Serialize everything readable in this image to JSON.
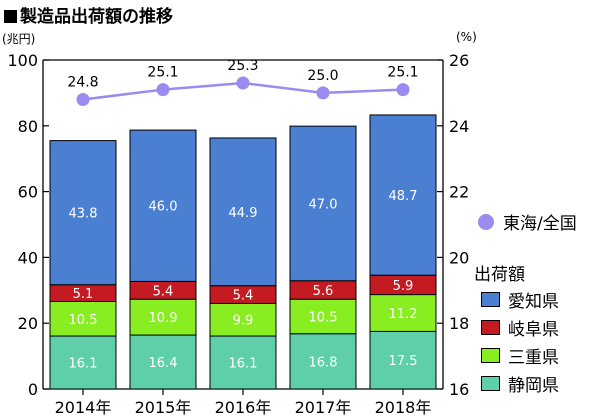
{
  "title": "製造品出荷額の推移",
  "left_unit": "(兆円)",
  "right_unit": "(%)",
  "chart_data": {
    "type": "bar",
    "stacked": true,
    "categories": [
      "2014年",
      "2015年",
      "2016年",
      "2017年",
      "2018年"
    ],
    "series": [
      {
        "name": "静岡県",
        "values": [
          16.1,
          16.4,
          16.1,
          16.8,
          17.5
        ],
        "color": "#5ecfa8"
      },
      {
        "name": "三重県",
        "values": [
          10.5,
          10.9,
          9.9,
          10.5,
          11.2
        ],
        "color": "#88ee22"
      },
      {
        "name": "岐阜県",
        "values": [
          5.1,
          5.4,
          5.4,
          5.6,
          5.9
        ],
        "color": "#c41a22"
      },
      {
        "name": "愛知県",
        "values": [
          43.8,
          46.0,
          44.9,
          47.0,
          48.7
        ],
        "color": "#4a7fd1"
      }
    ],
    "line_series": {
      "name": "東海/全国",
      "values": [
        24.8,
        25.1,
        25.3,
        25.0,
        25.1
      ],
      "color": "#9b8bf0",
      "axis": "right"
    },
    "left_axis": {
      "min": 0,
      "max": 100,
      "ticks": [
        0,
        20,
        40,
        60,
        80,
        100
      ]
    },
    "right_axis": {
      "min": 16,
      "max": 26,
      "ticks": [
        16,
        18,
        20,
        22,
        24,
        26
      ]
    },
    "legend_title": "出荷額",
    "legend_order": [
      "愛知県",
      "岐阜県",
      "三重県",
      "静岡県"
    ],
    "grid": false
  }
}
